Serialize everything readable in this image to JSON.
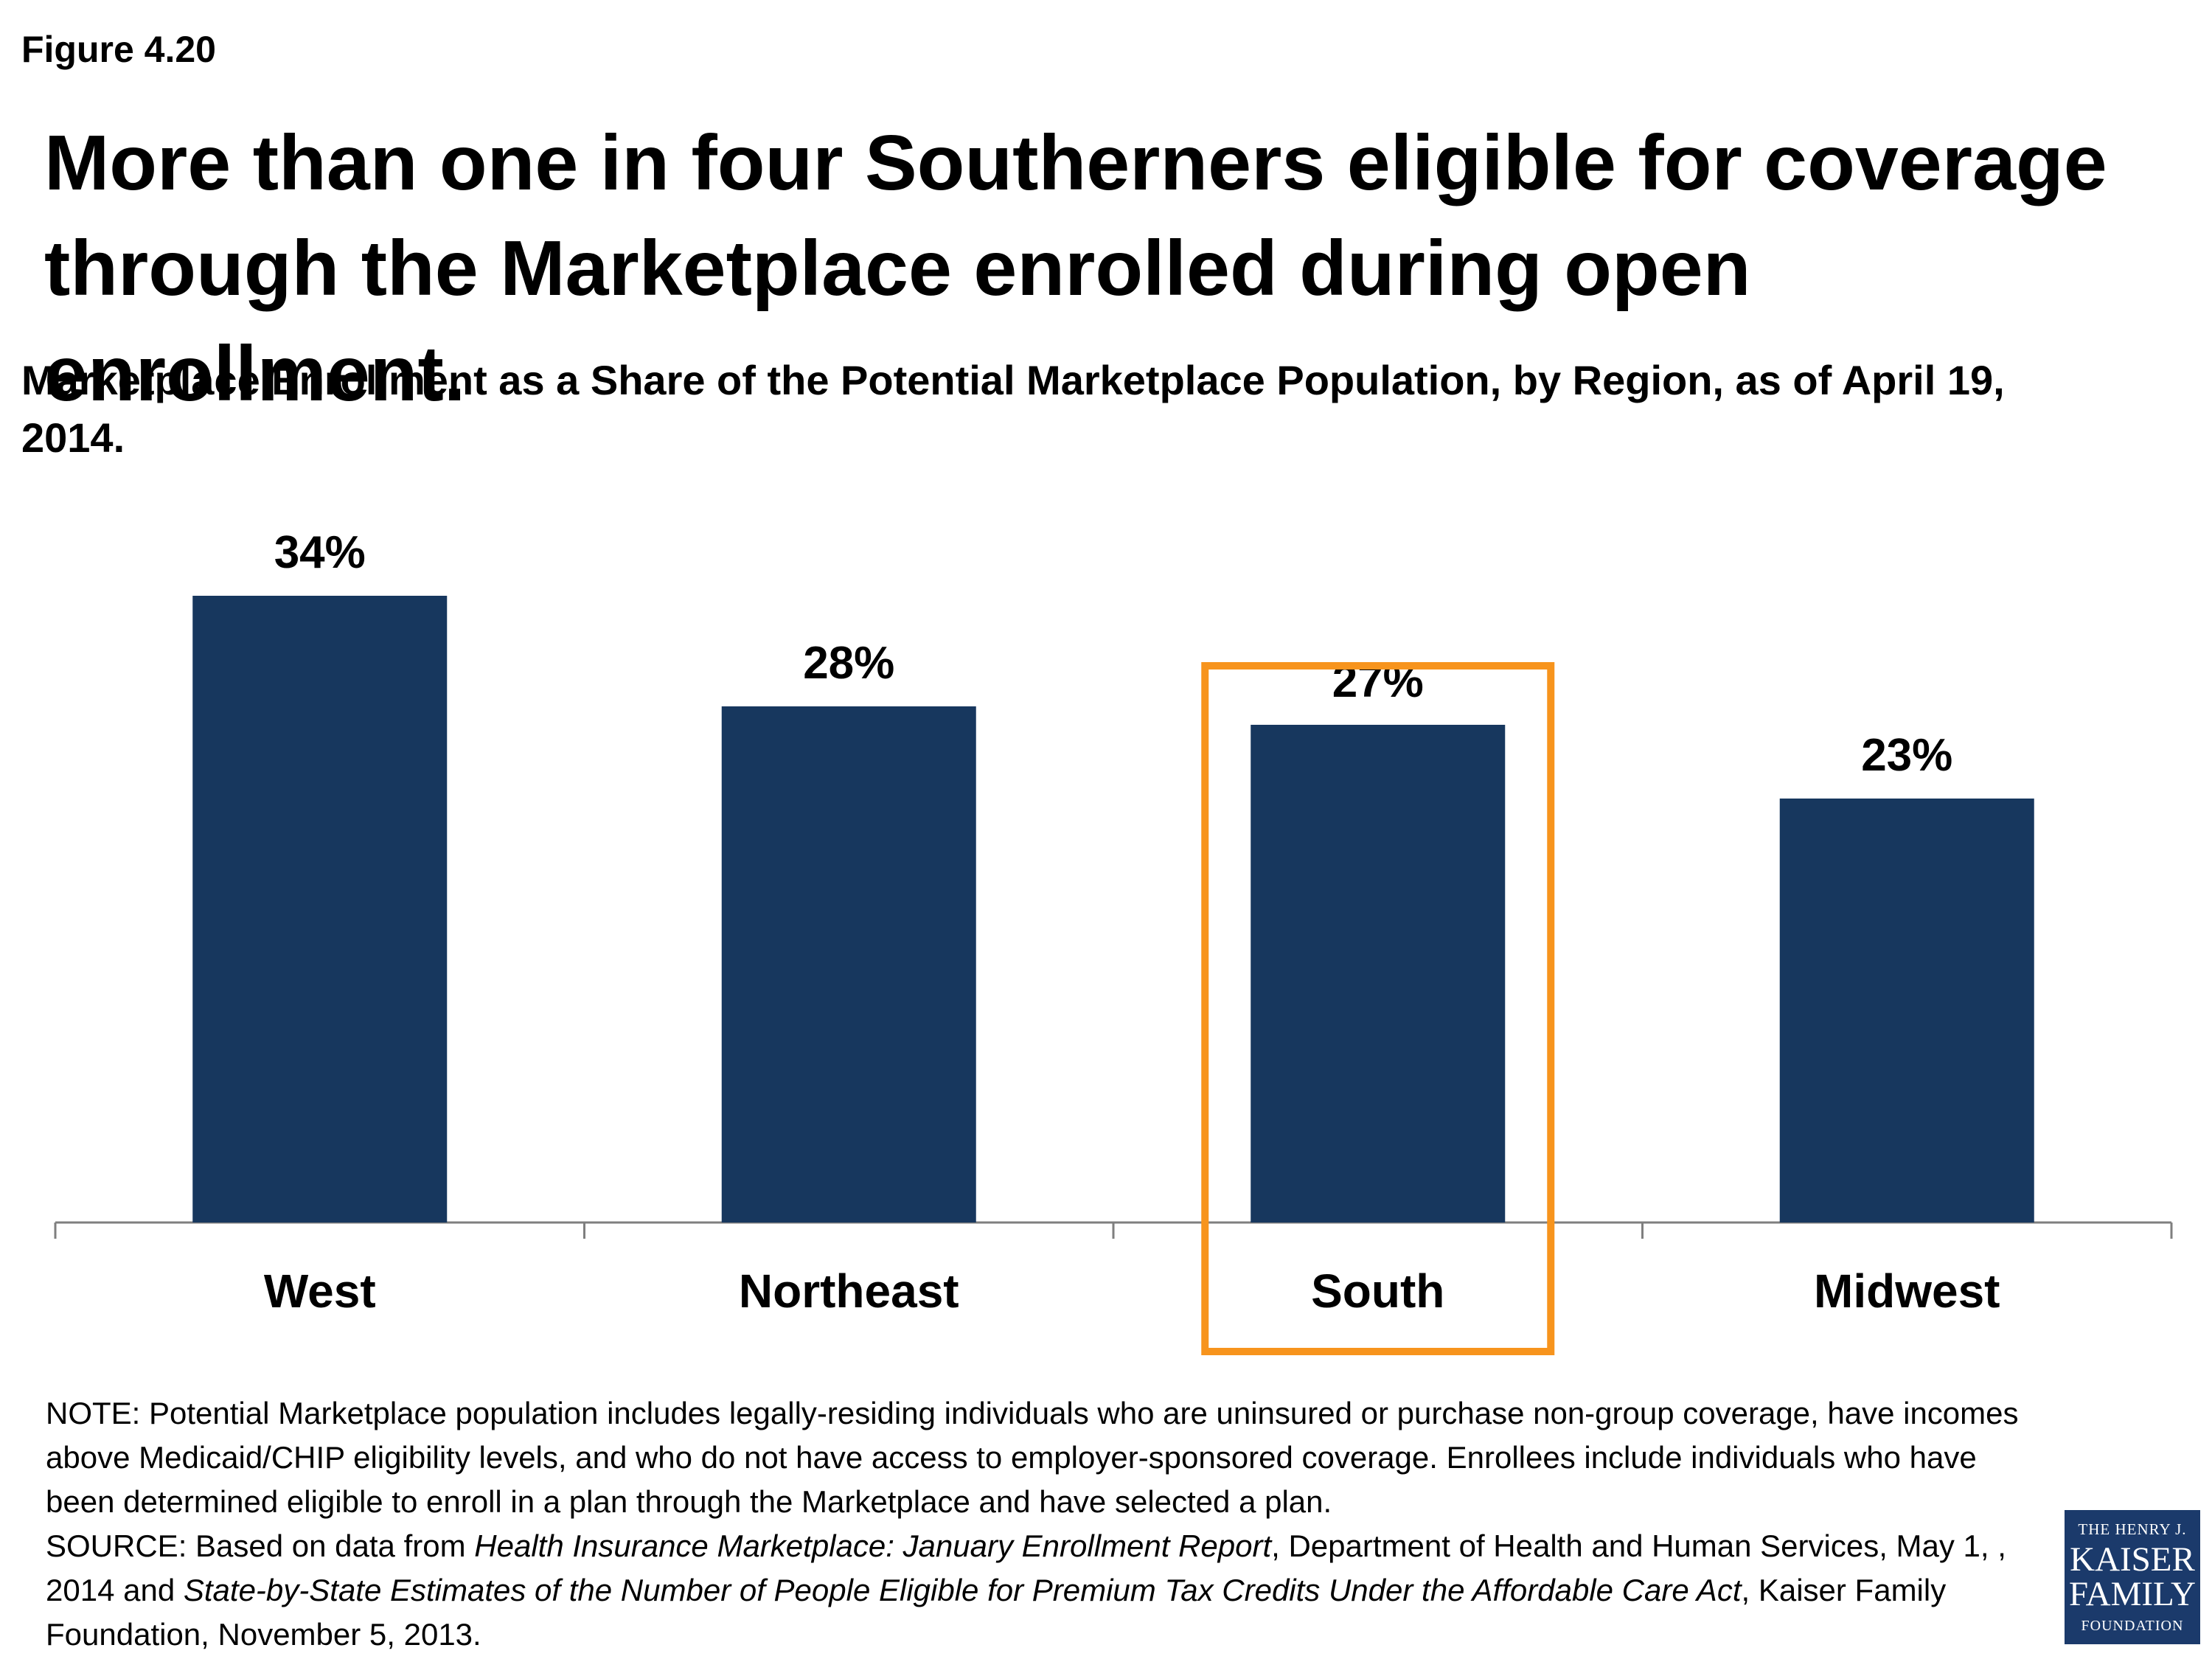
{
  "figure_label": "Figure 4.20",
  "headline": "More than one in four Southerners eligible for coverage through the Marketplace enrolled during open enrollment.",
  "chart_data": {
    "type": "bar",
    "title": "Marketplace Enrollment as a Share of the Potential Marketplace Population, by Region, as of April 19, 2014.",
    "categories": [
      "West",
      "Northeast",
      "South",
      "Midwest"
    ],
    "values": [
      34,
      28,
      27,
      23
    ],
    "value_labels": [
      "34%",
      "28%",
      "27%",
      "23%"
    ],
    "ylim": [
      0,
      40
    ],
    "grid": false,
    "highlighted_category": "South",
    "colors": {
      "bar": "#17375e",
      "highlight": "#f7941d",
      "axis": "#7f7f7f"
    }
  },
  "note": {
    "note_text": "NOTE: Potential Marketplace population includes legally-residing individuals who are uninsured or purchase non-group coverage, have incomes above Medicaid/CHIP eligibility levels, and who do not have access to employer-sponsored coverage. Enrollees include individuals who have been determined eligible to enroll in a plan through the Marketplace and have selected a plan.",
    "source_prefix": "SOURCE: Based on data from ",
    "source_title_1": "Health Insurance Marketplace: January Enrollment Report",
    "source_mid": ", Department of Health and Human Services, May 1, , 2014 and ",
    "source_title_2": "State-by-State Estimates of the Number of People Eligible for Premium Tax Credits Under the Affordable Care Act",
    "source_suffix": ", Kaiser Family Foundation, November 5, 2013."
  },
  "logo": {
    "line1": "THE HENRY J.",
    "line2": "KAISER",
    "line3": "FAMILY",
    "line4": "FOUNDATION"
  }
}
